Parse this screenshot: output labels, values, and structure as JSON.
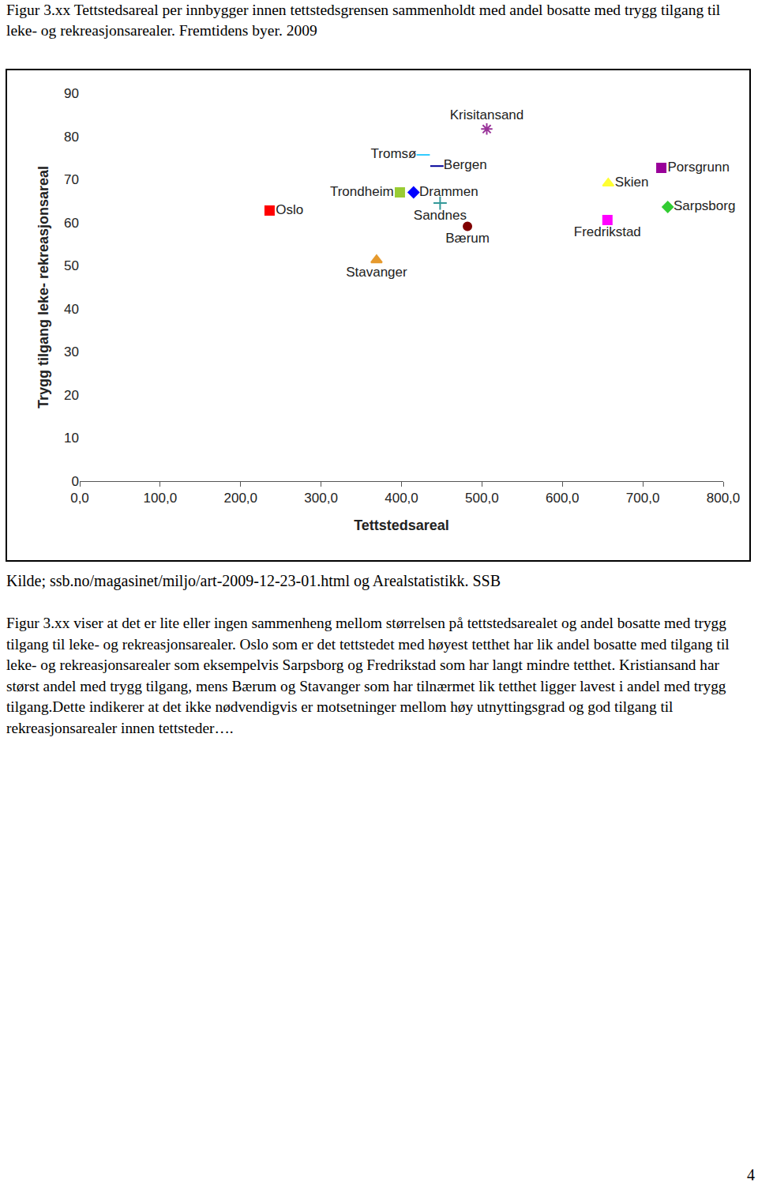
{
  "caption": "Figur 3.xx Tettstedsareal per innbygger innen tettstedsgrensen sammenholdt med andel bosatte med trygg tilgang til leke- og rekreasjonsarealer. Fremtidens byer. 2009",
  "chart_data": {
    "type": "scatter",
    "xlabel": "Tettstedsareal",
    "ylabel": "Trygg tilgang leke- rekreasjonsareal",
    "xlim": [
      0,
      800
    ],
    "ylim": [
      0,
      90
    ],
    "xticks": [
      {
        "value": 0,
        "label": "0,0"
      },
      {
        "value": 100,
        "label": "100,0"
      },
      {
        "value": 200,
        "label": "200,0"
      },
      {
        "value": 300,
        "label": "300,0"
      },
      {
        "value": 400,
        "label": "400,0"
      },
      {
        "value": 500,
        "label": "500,0"
      },
      {
        "value": 600,
        "label": "600,0"
      },
      {
        "value": 700,
        "label": "700,0"
      },
      {
        "value": 800,
        "label": "800,0"
      }
    ],
    "yticks": [
      0,
      10,
      20,
      30,
      40,
      50,
      60,
      70,
      80,
      90
    ],
    "grid": false,
    "series": [
      {
        "name": "Oslo",
        "color": "#ff0000",
        "marker": "square",
        "x": [
          236
        ],
        "values": [
          62.8
        ]
      },
      {
        "name": "Stavanger",
        "color": "#e69a2e",
        "marker": "triangle",
        "x": [
          369
        ],
        "values": [
          51.3
        ]
      },
      {
        "name": "Trondheim",
        "color": "#99cc33",
        "marker": "square",
        "x": [
          398
        ],
        "values": [
          67.0
        ]
      },
      {
        "name": "Drammen",
        "color": "#0000ff",
        "marker": "diamond",
        "x": [
          415
        ],
        "values": [
          67.0
        ]
      },
      {
        "name": "Tromsø",
        "color": "#33ccff",
        "marker": "dash",
        "x": [
          427
        ],
        "values": [
          75.7
        ]
      },
      {
        "name": "Bergen",
        "color": "#000099",
        "marker": "dash",
        "x": [
          444
        ],
        "values": [
          73.1
        ]
      },
      {
        "name": "Sandnes",
        "color": "#339999",
        "marker": "plus",
        "x": [
          448
        ],
        "values": [
          64.5
        ]
      },
      {
        "name": "Bærum",
        "color": "#800000",
        "marker": "circle",
        "x": [
          482
        ],
        "values": [
          59.1
        ]
      },
      {
        "name": "Krisitansand",
        "color": "#993399",
        "marker": "star",
        "x": [
          506
        ],
        "values": [
          81.7
        ]
      },
      {
        "name": "Skien",
        "color": "#ffff33",
        "marker": "triangle",
        "x": [
          657
        ],
        "values": [
          69.1
        ]
      },
      {
        "name": "Fredrikstad",
        "color": "#ff00ff",
        "marker": "square",
        "x": [
          656
        ],
        "values": [
          60.6
        ]
      },
      {
        "name": "Porsgrunn",
        "color": "#990099",
        "marker": "square",
        "x": [
          723
        ],
        "values": [
          72.7
        ]
      },
      {
        "name": "Sarpsborg",
        "color": "#33cc33",
        "marker": "diamond",
        "x": [
          731
        ],
        "values": [
          63.6
        ]
      }
    ]
  },
  "source": "Kilde; ssb.no/magasinet/miljo/art-2009-12-23-01.html og Arealstatistikk. SSB",
  "body": "Figur 3.xx viser at det er lite eller ingen sammenheng mellom størrelsen på tettstedsarealet og andel bosatte med trygg tilgang til leke- og rekreasjonsarealer. Oslo som er det tettstedet med høyest tetthet har lik andel bosatte med tilgang til leke- og rekreasjonsarealer som eksempelvis Sarpsborg og Fredrikstad som har langt mindre tetthet. Kristiansand har størst andel med trygg tilgang, mens Bærum og Stavanger som har tilnærmet lik tetthet ligger lavest i andel med trygg tilgang.Dette indikerer at det ikke nødvendigvis er motsetninger mellom høy utnyttingsgrad og god tilgang til rekreasjonsarealer innen tettsteder….",
  "page_number": 4
}
